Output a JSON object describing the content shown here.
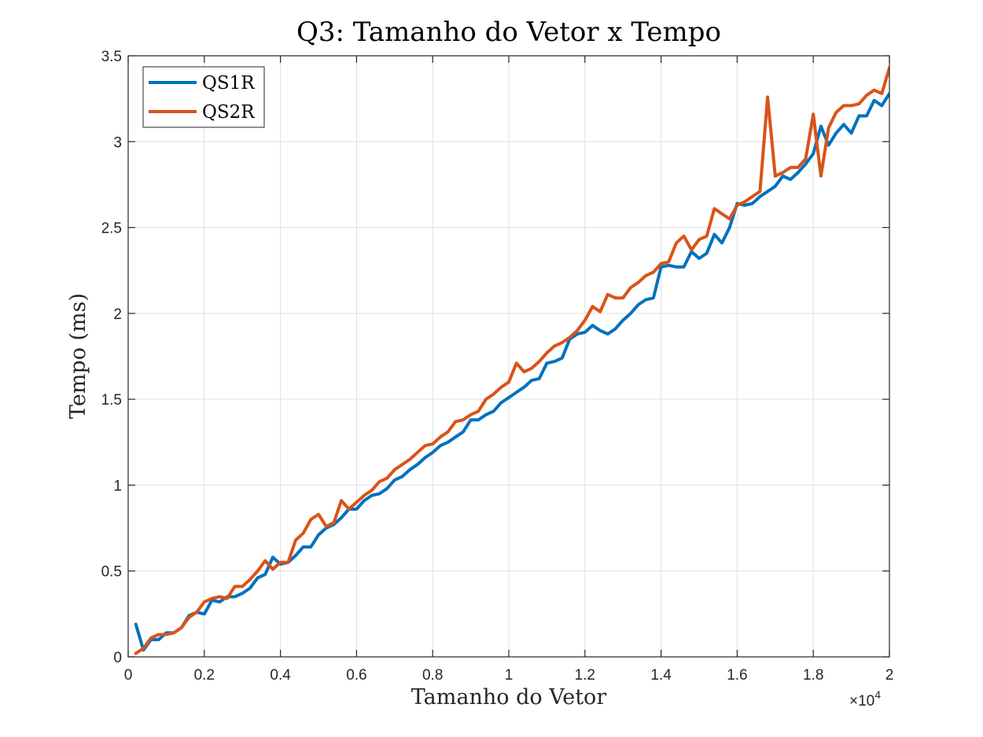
{
  "chart_data": {
    "type": "line",
    "title": "Q3: Tamanho do Vetor x Tempo",
    "xlabel": "Tamanho do Vetor",
    "ylabel": "Tempo (ms)",
    "x_exponent_label": "×10",
    "x_exponent_power": "4",
    "xlim": [
      0,
      20000
    ],
    "ylim": [
      0,
      3.5
    ],
    "grid": true,
    "legend_position": "top-left",
    "x_ticks": [
      0,
      2000,
      4000,
      6000,
      8000,
      10000,
      12000,
      14000,
      16000,
      18000,
      20000
    ],
    "x_tick_labels": [
      "0",
      "0.2",
      "0.4",
      "0.6",
      "0.8",
      "1",
      "1.2",
      "1.4",
      "1.6",
      "1.8",
      "2"
    ],
    "y_ticks": [
      0,
      0.5,
      1,
      1.5,
      2,
      2.5,
      3,
      3.5
    ],
    "y_tick_labels": [
      "0",
      "0.5",
      "1",
      "1.5",
      "2",
      "2.5",
      "3",
      "3.5"
    ],
    "x": [
      200,
      400,
      600,
      800,
      1000,
      1200,
      1400,
      1600,
      1800,
      2000,
      2200,
      2400,
      2600,
      2800,
      3000,
      3200,
      3400,
      3600,
      3800,
      4000,
      4200,
      4400,
      4600,
      4800,
      5000,
      5200,
      5400,
      5600,
      5800,
      6000,
      6200,
      6400,
      6600,
      6800,
      7000,
      7200,
      7400,
      7600,
      7800,
      8000,
      8200,
      8400,
      8600,
      8800,
      9000,
      9200,
      9400,
      9600,
      9800,
      10000,
      10200,
      10400,
      10600,
      10800,
      11000,
      11200,
      11400,
      11600,
      11800,
      12000,
      12200,
      12400,
      12600,
      12800,
      13000,
      13200,
      13400,
      13600,
      13800,
      14000,
      14200,
      14400,
      14600,
      14800,
      15000,
      15200,
      15400,
      15600,
      15800,
      16000,
      16200,
      16400,
      16600,
      16800,
      17000,
      17200,
      17400,
      17600,
      17800,
      18000,
      18200,
      18400,
      18600,
      18800,
      19000,
      19200,
      19400,
      19600,
      19800,
      20000
    ],
    "series": [
      {
        "name": "QS1R",
        "color": "#0072BD",
        "values": [
          0.19,
          0.04,
          0.1,
          0.1,
          0.14,
          0.14,
          0.17,
          0.24,
          0.26,
          0.25,
          0.33,
          0.32,
          0.35,
          0.35,
          0.37,
          0.4,
          0.46,
          0.48,
          0.58,
          0.54,
          0.55,
          0.59,
          0.64,
          0.64,
          0.71,
          0.75,
          0.77,
          0.81,
          0.86,
          0.86,
          0.91,
          0.94,
          0.95,
          0.98,
          1.03,
          1.05,
          1.09,
          1.12,
          1.16,
          1.19,
          1.23,
          1.25,
          1.28,
          1.31,
          1.38,
          1.38,
          1.41,
          1.43,
          1.48,
          1.51,
          1.54,
          1.57,
          1.61,
          1.62,
          1.71,
          1.72,
          1.74,
          1.85,
          1.88,
          1.89,
          1.93,
          1.9,
          1.88,
          1.91,
          1.96,
          2.0,
          2.05,
          2.08,
          2.09,
          2.27,
          2.28,
          2.27,
          2.27,
          2.36,
          2.32,
          2.35,
          2.46,
          2.41,
          2.5,
          2.64,
          2.63,
          2.64,
          2.68,
          2.71,
          2.74,
          2.8,
          2.78,
          2.82,
          2.87,
          2.93,
          3.09,
          2.98,
          3.05,
          3.1,
          3.05,
          3.15,
          3.15,
          3.24,
          3.21,
          3.28
        ]
      },
      {
        "name": "QS2R",
        "color": "#D95319",
        "values": [
          0.02,
          0.05,
          0.11,
          0.13,
          0.13,
          0.14,
          0.17,
          0.23,
          0.26,
          0.32,
          0.34,
          0.35,
          0.34,
          0.41,
          0.41,
          0.45,
          0.5,
          0.56,
          0.51,
          0.55,
          0.55,
          0.68,
          0.72,
          0.8,
          0.83,
          0.76,
          0.78,
          0.91,
          0.86,
          0.9,
          0.94,
          0.97,
          1.02,
          1.04,
          1.09,
          1.12,
          1.15,
          1.19,
          1.23,
          1.24,
          1.28,
          1.31,
          1.37,
          1.38,
          1.41,
          1.43,
          1.5,
          1.53,
          1.57,
          1.6,
          1.71,
          1.66,
          1.68,
          1.72,
          1.77,
          1.81,
          1.83,
          1.86,
          1.9,
          1.96,
          2.04,
          2.01,
          2.11,
          2.09,
          2.09,
          2.15,
          2.18,
          2.22,
          2.24,
          2.29,
          2.3,
          2.41,
          2.45,
          2.37,
          2.43,
          2.45,
          2.61,
          2.58,
          2.55,
          2.63,
          2.65,
          2.68,
          2.71,
          3.26,
          2.8,
          2.82,
          2.85,
          2.85,
          2.9,
          3.16,
          2.8,
          3.08,
          3.17,
          3.21,
          3.21,
          3.22,
          3.27,
          3.3,
          3.28,
          3.43
        ]
      }
    ]
  }
}
